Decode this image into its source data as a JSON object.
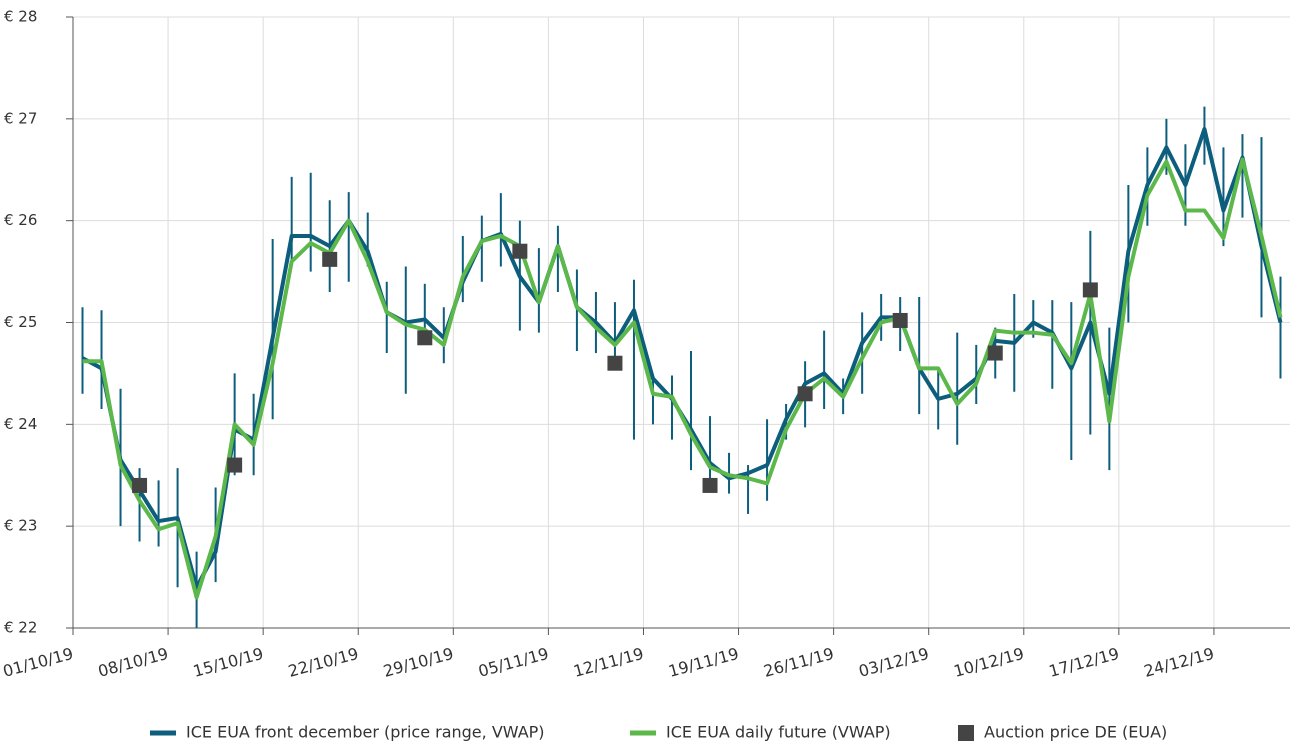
{
  "chart_data": {
    "type": "line",
    "categories": [
      "01/10/19",
      null,
      null,
      null,
      null,
      "08/10/19",
      null,
      null,
      null,
      null,
      "15/10/19",
      null,
      null,
      null,
      null,
      "22/10/19",
      null,
      null,
      null,
      null,
      "29/10/19",
      null,
      null,
      null,
      null,
      "05/11/19",
      null,
      null,
      null,
      null,
      "12/11/19",
      null,
      null,
      null,
      null,
      "19/11/19",
      null,
      null,
      null,
      null,
      "26/11/19",
      null,
      null,
      null,
      null,
      "03/12/19",
      null,
      null,
      null,
      null,
      "10/12/19",
      null,
      null,
      null,
      null,
      "17/12/19",
      null,
      null,
      null,
      null,
      "24/12/19",
      null,
      null,
      null
    ],
    "ylim": [
      22,
      28
    ],
    "yticks": [
      {
        "value": 22,
        "label": "€ 22"
      },
      {
        "value": 23,
        "label": "€ 23"
      },
      {
        "value": 24,
        "label": "€ 24"
      },
      {
        "value": 25,
        "label": "€ 25"
      },
      {
        "value": 26,
        "label": "€ 26"
      },
      {
        "value": 27,
        "label": "€ 27"
      },
      {
        "value": 28,
        "label": "€ 28"
      }
    ],
    "grid": true,
    "legend": "bottom",
    "series": [
      {
        "name": "ICE EUA front december (price range, VWAP)",
        "type": "line",
        "color": "#0d5d7c",
        "values": [
          24.65,
          24.55,
          23.65,
          23.35,
          23.05,
          23.08,
          22.4,
          22.75,
          23.95,
          23.85,
          24.85,
          25.85,
          25.85,
          25.75,
          26.0,
          25.7,
          25.1,
          25.0,
          25.03,
          24.85,
          25.4,
          25.8,
          25.87,
          25.45,
          25.2,
          25.75,
          25.15,
          25.0,
          24.8,
          25.12,
          24.45,
          24.25,
          23.95,
          23.62,
          23.47,
          23.52,
          23.6,
          24.05,
          24.4,
          24.5,
          24.3,
          24.8,
          25.05,
          25.05,
          24.55,
          24.25,
          24.3,
          24.45,
          24.82,
          24.8,
          25.0,
          24.9,
          24.55,
          25.0,
          24.3,
          25.7,
          26.35,
          26.72,
          26.35,
          26.9,
          26.1,
          26.62,
          25.75,
          25.0
        ],
        "high": [
          25.15,
          25.12,
          24.35,
          23.57,
          23.45,
          23.57,
          22.75,
          23.38,
          24.5,
          24.3,
          25.82,
          26.43,
          26.47,
          26.2,
          26.28,
          26.08,
          25.4,
          25.55,
          25.38,
          25.15,
          25.85,
          26.05,
          26.27,
          26.0,
          25.73,
          25.95,
          25.52,
          25.3,
          25.2,
          25.42,
          24.48,
          24.48,
          24.72,
          24.08,
          23.72,
          23.6,
          24.05,
          24.2,
          24.62,
          24.92,
          24.45,
          25.1,
          25.28,
          25.25,
          25.25,
          24.55,
          24.9,
          24.78,
          24.95,
          25.28,
          25.22,
          25.22,
          25.2,
          25.9,
          24.95,
          26.35,
          26.72,
          27.0,
          26.75,
          27.12,
          26.72,
          26.85,
          26.82,
          25.45
        ],
        "low": [
          24.3,
          24.15,
          23.0,
          22.85,
          22.8,
          22.4,
          22.0,
          22.45,
          23.5,
          23.5,
          24.05,
          25.55,
          25.5,
          25.3,
          25.4,
          25.55,
          24.7,
          24.3,
          24.8,
          24.6,
          25.2,
          25.4,
          25.55,
          24.92,
          24.9,
          25.3,
          24.72,
          24.7,
          24.6,
          23.85,
          24.0,
          23.85,
          23.55,
          23.4,
          23.32,
          23.12,
          23.25,
          23.85,
          23.97,
          24.15,
          24.1,
          24.3,
          24.82,
          24.72,
          24.1,
          23.95,
          23.8,
          24.2,
          24.45,
          24.32,
          24.85,
          24.35,
          23.65,
          23.9,
          23.55,
          25.0,
          25.95,
          26.45,
          25.95,
          26.55,
          25.75,
          26.03,
          25.05,
          24.45
        ]
      },
      {
        "name": "ICE EUA daily future (VWAP)",
        "type": "line",
        "color": "#5cb84a",
        "values": [
          24.62,
          24.62,
          23.6,
          23.25,
          22.97,
          23.03,
          22.3,
          22.9,
          24.0,
          23.8,
          24.6,
          25.6,
          25.78,
          25.68,
          26.0,
          25.6,
          25.1,
          24.98,
          24.93,
          24.78,
          25.45,
          25.8,
          25.85,
          25.75,
          25.2,
          25.75,
          25.15,
          24.95,
          24.78,
          25.0,
          24.3,
          24.27,
          23.9,
          23.58,
          23.5,
          23.47,
          23.42,
          23.95,
          24.3,
          24.45,
          24.27,
          24.65,
          25.0,
          25.05,
          24.55,
          24.55,
          24.2,
          24.4,
          24.92,
          24.9,
          24.9,
          24.88,
          24.6,
          25.28,
          24.03,
          25.45,
          26.25,
          26.58,
          26.1,
          26.1,
          25.83,
          26.6,
          25.85,
          25.05
        ]
      },
      {
        "name": "Auction price DE (EUA)",
        "type": "scatter",
        "color": "#444444",
        "values": [
          null,
          null,
          null,
          23.4,
          null,
          null,
          null,
          null,
          23.6,
          null,
          null,
          null,
          null,
          25.62,
          null,
          null,
          null,
          null,
          24.85,
          null,
          null,
          null,
          null,
          25.7,
          null,
          null,
          null,
          null,
          24.6,
          null,
          null,
          null,
          null,
          23.4,
          null,
          null,
          null,
          null,
          24.3,
          null,
          null,
          null,
          null,
          25.02,
          null,
          null,
          null,
          null,
          24.7,
          null,
          null,
          null,
          null,
          25.32,
          null,
          null,
          null,
          null,
          null,
          null,
          null,
          null,
          null,
          null
        ]
      }
    ]
  }
}
